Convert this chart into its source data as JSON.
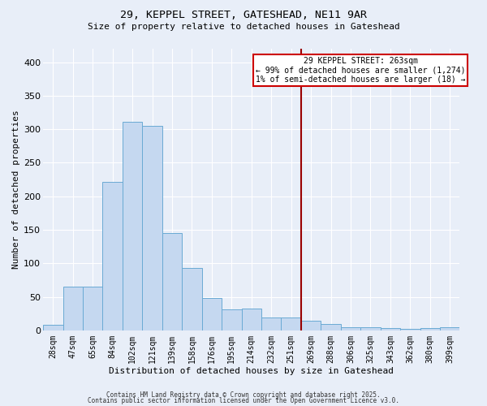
{
  "title1": "29, KEPPEL STREET, GATESHEAD, NE11 9AR",
  "title2": "Size of property relative to detached houses in Gateshead",
  "xlabel": "Distribution of detached houses by size in Gateshead",
  "ylabel": "Number of detached properties",
  "bar_labels": [
    "28sqm",
    "47sqm",
    "65sqm",
    "84sqm",
    "102sqm",
    "121sqm",
    "139sqm",
    "158sqm",
    "176sqm",
    "195sqm",
    "214sqm",
    "232sqm",
    "251sqm",
    "269sqm",
    "288sqm",
    "306sqm",
    "325sqm",
    "343sqm",
    "362sqm",
    "380sqm",
    "399sqm"
  ],
  "bar_heights": [
    8,
    65,
    65,
    222,
    311,
    305,
    145,
    93,
    48,
    31,
    33,
    19,
    19,
    14,
    10,
    5,
    5,
    4,
    2,
    4,
    5
  ],
  "bar_color": "#c5d8f0",
  "bar_edge_color": "#6aaad4",
  "bg_color": "#e8eef8",
  "grid_color": "#ffffff",
  "vline_color": "#990000",
  "annotation_text": "29 KEPPEL STREET: 263sqm\n← 99% of detached houses are smaller (1,274)\n1% of semi-detached houses are larger (18) →",
  "annotation_box_color": "#cc0000",
  "footer1": "Contains HM Land Registry data © Crown copyright and database right 2025.",
  "footer2": "Contains public sector information licensed under the Open Government Licence v3.0.",
  "ylim": [
    0,
    420
  ],
  "yticks": [
    0,
    50,
    100,
    150,
    200,
    250,
    300,
    350,
    400
  ]
}
